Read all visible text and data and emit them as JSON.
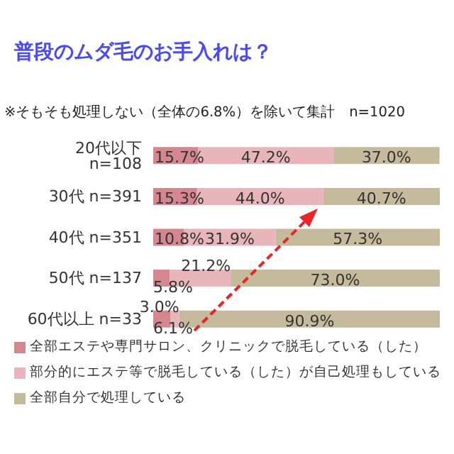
{
  "chart_data": {
    "type": "bar",
    "orientation": "horizontal",
    "stacked": true,
    "title": "普段のムダ毛のお手入れは？",
    "subtitle": "※そもそも処理しない（全体の6.8%）を除いて集計　n=1020",
    "categories": [
      "20代以下 n=108",
      "30代 n=391",
      "40代 n=351",
      "50代 n=137",
      "60代以上 n=33"
    ],
    "series": [
      {
        "name": "全部エステや専門サロン、クリニックで脱毛している（した）",
        "color": "#d4878f",
        "values": [
          15.7,
          15.3,
          10.8,
          5.8,
          6.1
        ],
        "value_labels": [
          "15.7%",
          "15.3%",
          "10.8%",
          "5.8%",
          "6.1%"
        ]
      },
      {
        "name": "部分的にエステ等で脱毛している（した）が自己処理もしている",
        "color": "#e8b6ba",
        "values": [
          47.2,
          44.0,
          31.9,
          21.2,
          3.0
        ],
        "value_labels": [
          "47.2%",
          "44.0%",
          "31.9%",
          "21.2%",
          "3.0%"
        ]
      },
      {
        "name": "全部自分で処理している",
        "color": "#c5bb9c",
        "values": [
          37.0,
          40.7,
          57.3,
          73.0,
          90.9
        ],
        "value_labels": [
          "37.0%",
          "40.7%",
          "57.3%",
          "73.0%",
          "90.9%"
        ]
      }
    ],
    "legend": "bottom left",
    "grid": false
  }
}
